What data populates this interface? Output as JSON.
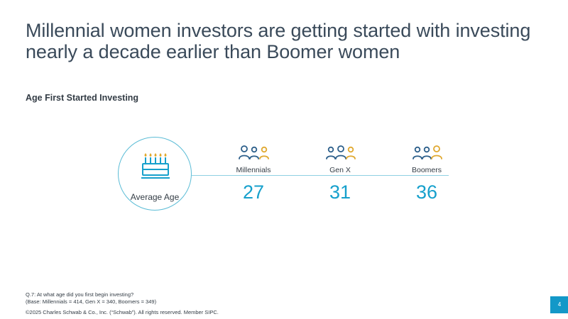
{
  "title": {
    "line1": "Millennial women investors are getting started with investing",
    "line2": "nearly a decade earlier than Boomer women"
  },
  "subtitle": "Age First Started Investing",
  "average_label": "Average Age",
  "colors": {
    "accent_blue": "#16a0cc",
    "icon_gold": "#e0a82e",
    "icon_navy": "#2b5e8a",
    "circle_border": "#5bbcd6"
  },
  "generations": [
    {
      "label": "Millennials",
      "value": "27",
      "icon": "people-group-icon"
    },
    {
      "label": "Gen X",
      "value": "31",
      "icon": "people-group-icon"
    },
    {
      "label": "Boomers",
      "value": "36",
      "icon": "people-group-icon"
    }
  ],
  "footnote": {
    "question": "Q.7:  At what age did you first begin investing?",
    "base": "(Base: Millennials = 414, Gen X = 340, Boomers = 349)"
  },
  "copyright": "©2025 Charles Schwab & Co., Inc. (“Schwab”). All rights reserved. Member SIPC.",
  "page_number": "4"
}
